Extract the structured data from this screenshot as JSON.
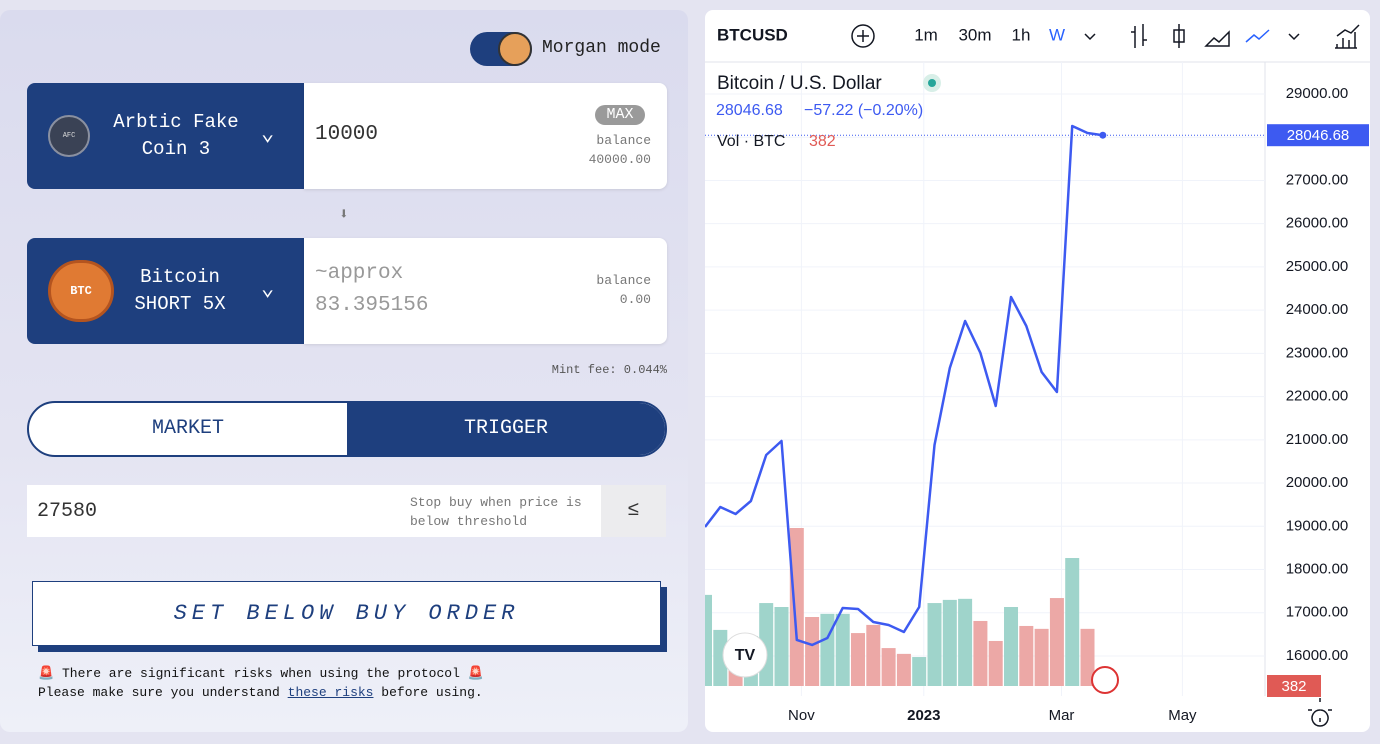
{
  "mode_toggle": {
    "label": "Morgan mode"
  },
  "from": {
    "token": "Arbtic Fake Coin 3",
    "icon": "AFC",
    "amount": "10000",
    "max": "MAX",
    "balance_label": "balance",
    "balance": "40000.00"
  },
  "to": {
    "token": "Bitcoin SHORT 5X",
    "icon": "BTC",
    "approx": "~approx",
    "amount": "83.395156",
    "balance_label": "balance",
    "balance": "0.00"
  },
  "mint_fee": "Mint fee: 0.044%",
  "tabs": [
    "MARKET",
    "TRIGGER"
  ],
  "trigger": {
    "value": "27580",
    "hint": "Stop buy when price is below threshold",
    "operator": "≤"
  },
  "submit": "SET BELOW BUY ORDER",
  "warning": {
    "line1": "There are significant risks when using the protocol",
    "line2_pre": "Please make sure you understand",
    "link": "these risks",
    "line2_post": "before using."
  },
  "chart_widget": {
    "symbol": "BTCUSD",
    "intervals": [
      "1m",
      "30m",
      "1h",
      "W"
    ],
    "change": "−57.22 (−0.20%)",
    "chart_data": {
      "type": "line",
      "x": [
        0,
        1,
        2,
        3,
        4,
        5,
        6,
        7,
        8,
        9,
        10,
        11,
        12,
        13,
        14,
        15,
        16,
        17,
        18,
        19,
        20,
        21,
        22,
        23,
        24,
        25,
        26
      ],
      "series": [
        {
          "name": "Bitcoin / U.S. Dollar",
          "color": "#3d5af1",
          "values": [
            18984,
            19446,
            19284,
            19585,
            20649,
            20973,
            16370,
            16254,
            16416,
            17110,
            17087,
            16786,
            16717,
            16555,
            17133,
            20881,
            22662,
            23749,
            23009,
            21783,
            24304,
            23633,
            22569,
            22107,
            28260,
            28098,
            28046.68
          ]
        },
        {
          "name": "Vol · BTC",
          "up_color": "#9fd4cb",
          "down_color": "#eca8a6",
          "values": [
            3460,
            2130,
            800,
            1900,
            3150,
            3000,
            6000,
            2620,
            2740,
            2740,
            2010,
            2320,
            1440,
            1220,
            1100,
            3150,
            3270,
            3310,
            2470,
            1710,
            3000,
            2280,
            2170,
            3340,
            4860,
            2170,
            382
          ]
        }
      ],
      "xlim": [
        0,
        36.6
      ],
      "xticks": [
        {
          "value": 6.3,
          "label": "Nov"
        },
        {
          "value": 14.3,
          "label": "2023"
        },
        {
          "value": 23.3,
          "label": "Mar"
        },
        {
          "value": 31.2,
          "label": "May"
        }
      ],
      "ylim": [
        15074,
        29740
      ],
      "yticks": [
        {
          "value": 16000,
          "label": "16000.00"
        },
        {
          "value": 17000,
          "label": "17000.00"
        },
        {
          "value": 18000,
          "label": "18000.00"
        },
        {
          "value": 19000,
          "label": "19000.00"
        },
        {
          "value": 20000,
          "label": "20000.00"
        },
        {
          "value": 21000,
          "label": "21000.00"
        },
        {
          "value": 22000,
          "label": "22000.00"
        },
        {
          "value": 23000,
          "label": "23000.00"
        },
        {
          "value": 24000,
          "label": "24000.00"
        },
        {
          "value": 25000,
          "label": "25000.00"
        },
        {
          "value": 26000,
          "label": "26000.00"
        },
        {
          "value": 27000,
          "label": "27000.00"
        },
        {
          "value": 28000,
          "label": "28000.00"
        },
        {
          "value": 29000,
          "label": "29000.00"
        }
      ],
      "grid": true
    }
  }
}
